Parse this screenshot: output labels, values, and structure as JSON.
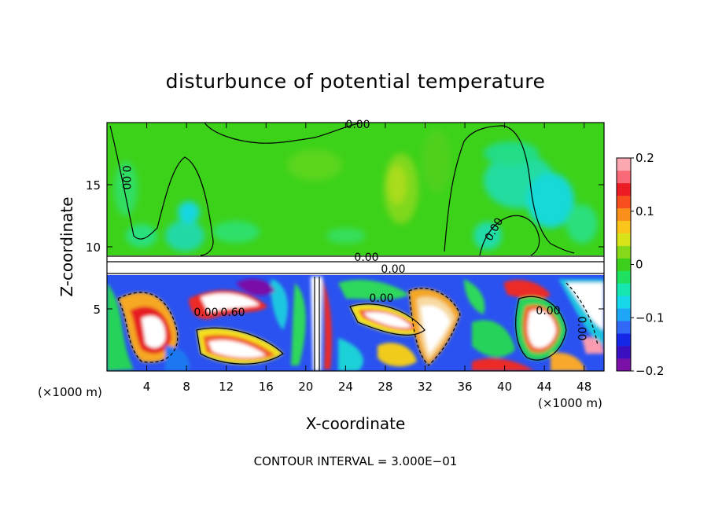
{
  "chart_data": {
    "type": "heatmap",
    "title": "disturbunce of potential temperature",
    "xlabel": "X-coordinate",
    "ylabel": "Z-coordinate",
    "x_unit_left": "(×1000 m)",
    "x_unit_right": "(×1000 m)",
    "xlim": [
      0,
      50
    ],
    "ylim": [
      0,
      20
    ],
    "x_ticks": [
      4,
      8,
      12,
      16,
      20,
      24,
      28,
      32,
      36,
      40,
      44,
      48
    ],
    "x_tick_labels": [
      "4",
      "8",
      "12",
      "16",
      "20",
      "24",
      "28",
      "32",
      "36",
      "40",
      "44",
      "48"
    ],
    "y_ticks": [
      5,
      10,
      15
    ],
    "y_tick_labels": [
      "5",
      "10",
      "15"
    ],
    "colorbar": {
      "range": [
        -0.2,
        0.2
      ],
      "tick_labels": [
        "0.2",
        "0.1",
        "0",
        "−0.1",
        "−0.2"
      ],
      "tick_values": [
        0.2,
        0.1,
        0,
        -0.1,
        -0.2
      ],
      "colors": [
        "#7a10a8",
        "#3a0fbf",
        "#1426e6",
        "#2f69f5",
        "#1ea6f7",
        "#17d8e8",
        "#18e6b0",
        "#20e060",
        "#3ccf1c",
        "#86d81b",
        "#d8e31a",
        "#fbc51b",
        "#fb8f1b",
        "#f7501e",
        "#ec1c24",
        "#f86a78",
        "#fba8b0"
      ]
    },
    "contour_labels": [
      "0.00",
      "0.00",
      "0.00",
      "0.60",
      "0.00",
      "0.00",
      "0.00",
      "0.00",
      "0.00",
      "0.00"
    ],
    "footer": "CONTOUR INTERVAL = 3.000E−01"
  }
}
